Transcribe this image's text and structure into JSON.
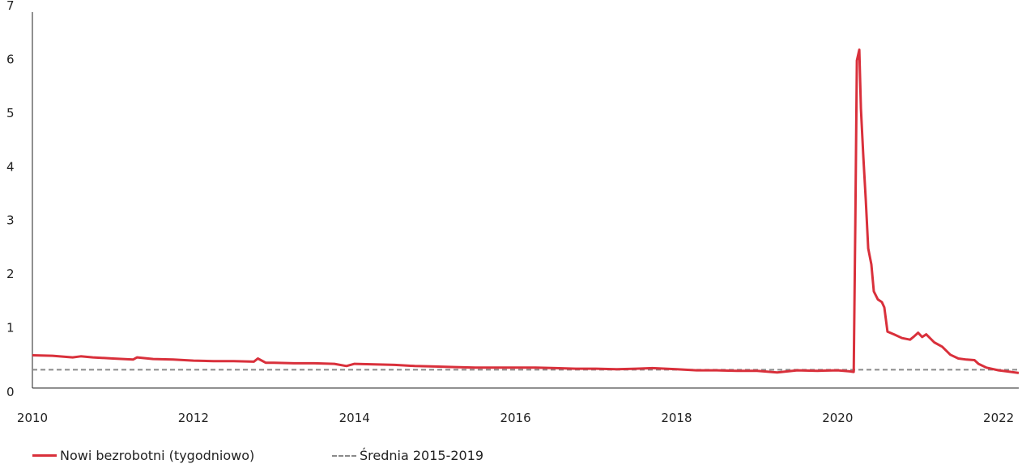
{
  "chart_data": {
    "type": "line",
    "title": "",
    "xlabel": "",
    "ylabel": "",
    "xlim": [
      2010,
      2022.25
    ],
    "ylim": [
      0,
      7
    ],
    "x_ticks": [
      "2010",
      "2012",
      "2014",
      "2016",
      "2018",
      "2020",
      "2022"
    ],
    "y_ticks": [
      "0",
      "1",
      "2",
      "3",
      "4",
      "5",
      "6",
      "7"
    ],
    "legend_position": "bottom-left",
    "series": [
      {
        "name": "Nowi bezrobotni (tygodniowo)",
        "color": "#d9303b",
        "points": [
          [
            2010.0,
            0.61
          ],
          [
            2010.25,
            0.6
          ],
          [
            2010.5,
            0.57
          ],
          [
            2010.6,
            0.59
          ],
          [
            2010.75,
            0.57
          ],
          [
            2011.0,
            0.55
          ],
          [
            2011.25,
            0.53
          ],
          [
            2011.3,
            0.57
          ],
          [
            2011.5,
            0.54
          ],
          [
            2011.75,
            0.53
          ],
          [
            2012.0,
            0.51
          ],
          [
            2012.25,
            0.5
          ],
          [
            2012.5,
            0.5
          ],
          [
            2012.75,
            0.49
          ],
          [
            2012.8,
            0.55
          ],
          [
            2012.9,
            0.47
          ],
          [
            2013.0,
            0.47
          ],
          [
            2013.25,
            0.46
          ],
          [
            2013.5,
            0.46
          ],
          [
            2013.75,
            0.45
          ],
          [
            2013.9,
            0.41
          ],
          [
            2014.0,
            0.45
          ],
          [
            2014.25,
            0.44
          ],
          [
            2014.5,
            0.43
          ],
          [
            2014.75,
            0.41
          ],
          [
            2015.0,
            0.4
          ],
          [
            2015.25,
            0.39
          ],
          [
            2015.5,
            0.38
          ],
          [
            2015.75,
            0.38
          ],
          [
            2016.0,
            0.38
          ],
          [
            2016.25,
            0.38
          ],
          [
            2016.5,
            0.37
          ],
          [
            2016.75,
            0.36
          ],
          [
            2017.0,
            0.36
          ],
          [
            2017.25,
            0.35
          ],
          [
            2017.5,
            0.36
          ],
          [
            2017.7,
            0.37
          ],
          [
            2018.0,
            0.35
          ],
          [
            2018.25,
            0.33
          ],
          [
            2018.5,
            0.33
          ],
          [
            2018.75,
            0.32
          ],
          [
            2019.0,
            0.32
          ],
          [
            2019.25,
            0.29
          ],
          [
            2019.5,
            0.33
          ],
          [
            2019.75,
            0.32
          ],
          [
            2020.0,
            0.33
          ],
          [
            2020.15,
            0.31
          ],
          [
            2020.2,
            0.3
          ],
          [
            2020.22,
            3.1
          ],
          [
            2020.24,
            6.1
          ],
          [
            2020.27,
            6.3
          ],
          [
            2020.29,
            5.2
          ],
          [
            2020.32,
            4.3
          ],
          [
            2020.35,
            3.5
          ],
          [
            2020.38,
            2.6
          ],
          [
            2020.42,
            2.3
          ],
          [
            2020.45,
            1.8
          ],
          [
            2020.5,
            1.65
          ],
          [
            2020.55,
            1.6
          ],
          [
            2020.58,
            1.5
          ],
          [
            2020.62,
            1.05
          ],
          [
            2020.7,
            1.0
          ],
          [
            2020.8,
            0.93
          ],
          [
            2020.9,
            0.9
          ],
          [
            2020.95,
            0.96
          ],
          [
            2021.0,
            1.03
          ],
          [
            2021.05,
            0.95
          ],
          [
            2021.1,
            1.0
          ],
          [
            2021.2,
            0.85
          ],
          [
            2021.3,
            0.77
          ],
          [
            2021.4,
            0.62
          ],
          [
            2021.5,
            0.55
          ],
          [
            2021.6,
            0.53
          ],
          [
            2021.7,
            0.52
          ],
          [
            2021.75,
            0.45
          ],
          [
            2021.85,
            0.38
          ],
          [
            2022.0,
            0.33
          ],
          [
            2022.1,
            0.31
          ],
          [
            2022.25,
            0.28
          ]
        ]
      },
      {
        "name": "Średnia 2015-2019",
        "color": "#8a8a8a",
        "style": "dashed",
        "points": [
          [
            2010.0,
            0.34
          ],
          [
            2022.25,
            0.34
          ]
        ]
      }
    ]
  }
}
